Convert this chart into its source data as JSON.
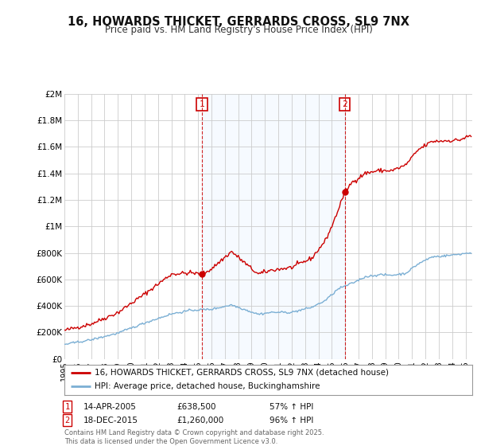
{
  "title_line1": "16, HOWARDS THICKET, GERRARDS CROSS, SL9 7NX",
  "title_line2": "Price paid vs. HM Land Registry's House Price Index (HPI)",
  "background_color": "#ffffff",
  "plot_bg_color": "#ffffff",
  "grid_color": "#cccccc",
  "red_line_color": "#cc0000",
  "blue_line_color": "#7bafd4",
  "shade_color": "#ddeeff",
  "ylim": [
    0,
    2000000
  ],
  "yticks": [
    0,
    200000,
    400000,
    600000,
    800000,
    1000000,
    1200000,
    1400000,
    1600000,
    1800000,
    2000000
  ],
  "ytick_labels": [
    "£0",
    "£200K",
    "£400K",
    "£600K",
    "£800K",
    "£1M",
    "£1.2M",
    "£1.4M",
    "£1.6M",
    "£1.8M",
    "£2M"
  ],
  "sale1_year": 2005.29,
  "sale1_price": 638500,
  "sale1_label": "1",
  "sale1_date": "14-APR-2005",
  "sale1_amt": "£638,500",
  "sale1_pct": "57% ↑ HPI",
  "sale2_year": 2015.97,
  "sale2_price": 1260000,
  "sale2_label": "2",
  "sale2_date": "18-DEC-2015",
  "sale2_amt": "£1,260,000",
  "sale2_pct": "96% ↑ HPI",
  "legend_line1": "16, HOWARDS THICKET, GERRARDS CROSS, SL9 7NX (detached house)",
  "legend_line2": "HPI: Average price, detached house, Buckinghamshire",
  "footnote": "Contains HM Land Registry data © Crown copyright and database right 2025.\nThis data is licensed under the Open Government Licence v3.0.",
  "xmin": 1995,
  "xmax": 2025.5
}
